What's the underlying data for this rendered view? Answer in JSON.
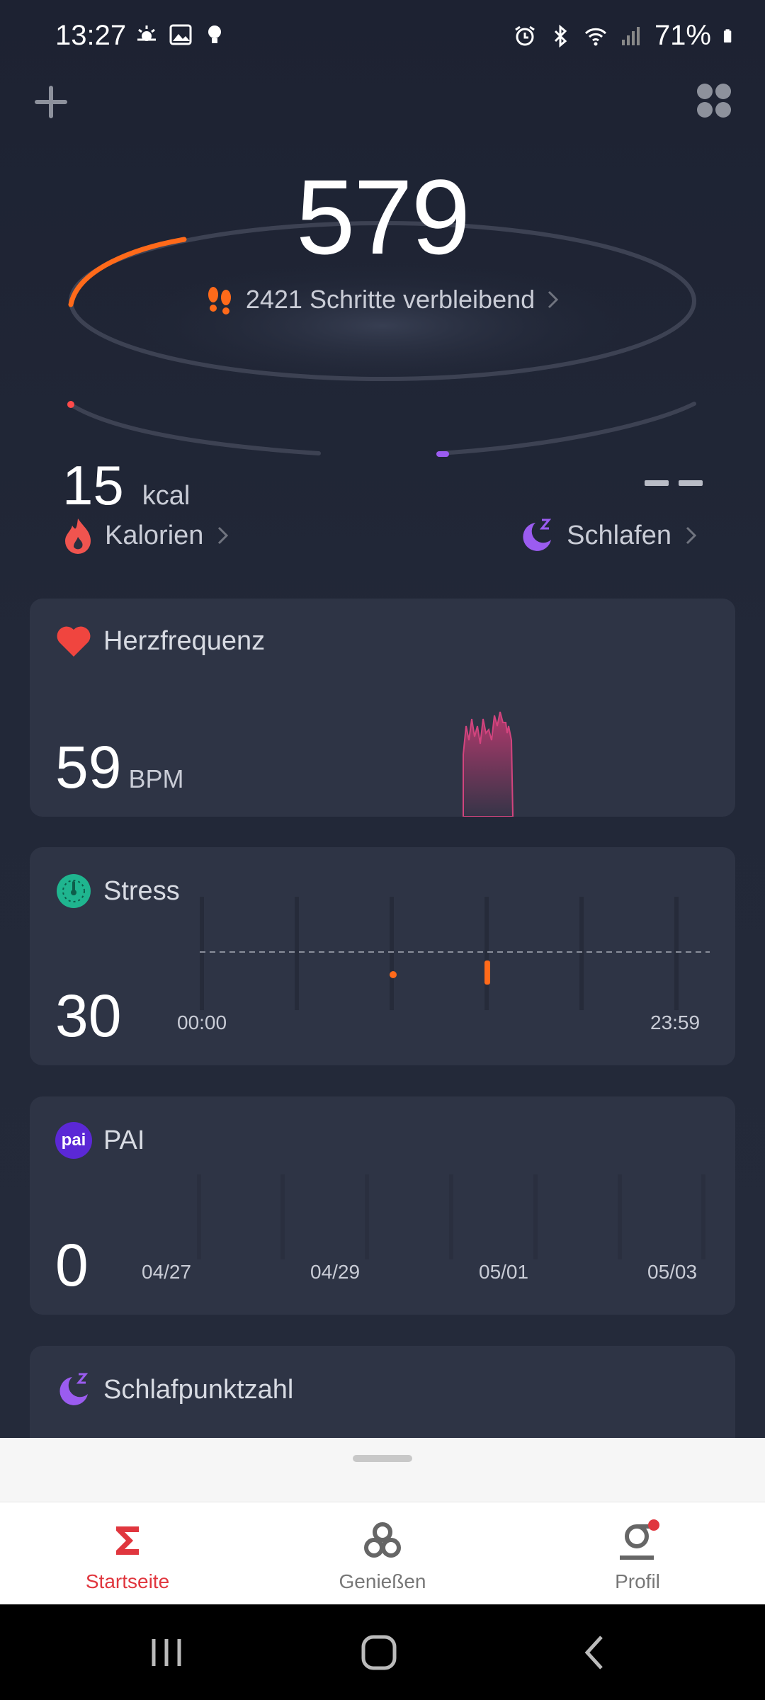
{
  "status_bar": {
    "time": "13:27",
    "battery": "71%"
  },
  "hero": {
    "steps": "579",
    "steps_remaining": "2421 Schritte verbleibend"
  },
  "calories": {
    "value": "15",
    "unit": "kcal",
    "label": "Kalorien"
  },
  "sleep": {
    "value": "– –",
    "label": "Schlafen"
  },
  "heart_rate": {
    "title": "Herzfrequenz",
    "value": "59",
    "unit": "BPM"
  },
  "stress": {
    "title": "Stress",
    "value": "30",
    "start_label": "00:00",
    "end_label": "23:59"
  },
  "pai": {
    "title": "PAI",
    "badge": "pai",
    "value": "0",
    "dates": [
      "04/27",
      "04/29",
      "05/01",
      "05/03"
    ]
  },
  "sleep_score": {
    "title": "Schlafpunktzahl"
  },
  "nav": {
    "home": "Startseite",
    "enjoy": "Genießen",
    "profile": "Profil"
  },
  "colors": {
    "accent_red": "#e0363e",
    "orange": "#ff6a1a",
    "purple": "#9b5cf0",
    "teal": "#1fb58f"
  }
}
